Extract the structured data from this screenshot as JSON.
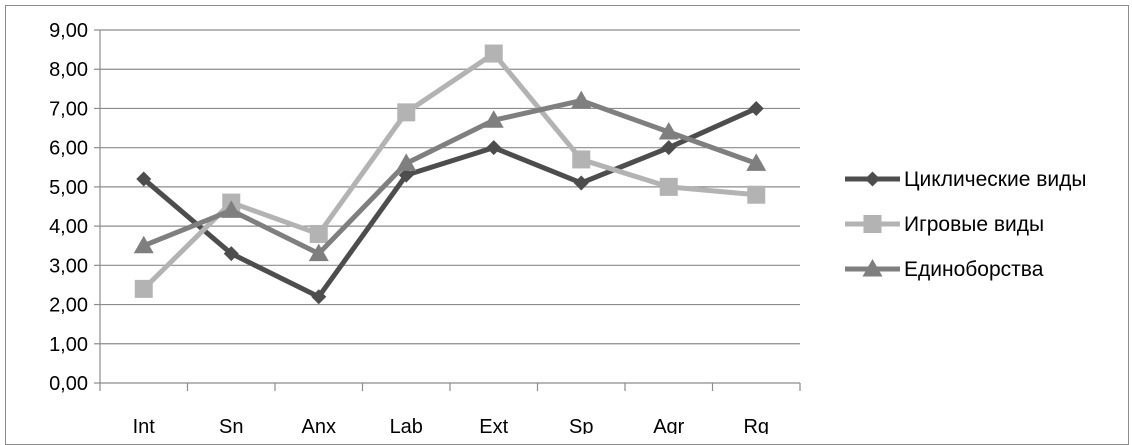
{
  "chart_data": {
    "type": "line",
    "categories": [
      "Int",
      "Sn",
      "Anx",
      "Lab",
      "Ext",
      "Sp",
      "Agr",
      "Rg"
    ],
    "ylim": [
      0,
      9
    ],
    "yticks": [
      "0,00",
      "1,00",
      "2,00",
      "3,00",
      "4,00",
      "5,00",
      "6,00",
      "7,00",
      "8,00",
      "9,00"
    ],
    "grid": "horizontal",
    "legend_position": "right",
    "series": [
      {
        "name": "Циклические виды",
        "values": [
          5.2,
          3.3,
          2.2,
          5.3,
          6.0,
          5.1,
          6.0,
          7.0
        ],
        "color": "#4d4d4d",
        "marker": "diamond"
      },
      {
        "name": "Игровые виды",
        "values": [
          2.4,
          4.6,
          3.8,
          6.9,
          8.4,
          5.7,
          5.0,
          4.8
        ],
        "color": "#b3b3b3",
        "marker": "square"
      },
      {
        "name": "Единоборства",
        "values": [
          3.5,
          4.4,
          3.3,
          5.6,
          6.7,
          7.2,
          6.4,
          5.6
        ],
        "color": "#7f7f7f",
        "marker": "triangle"
      }
    ]
  }
}
